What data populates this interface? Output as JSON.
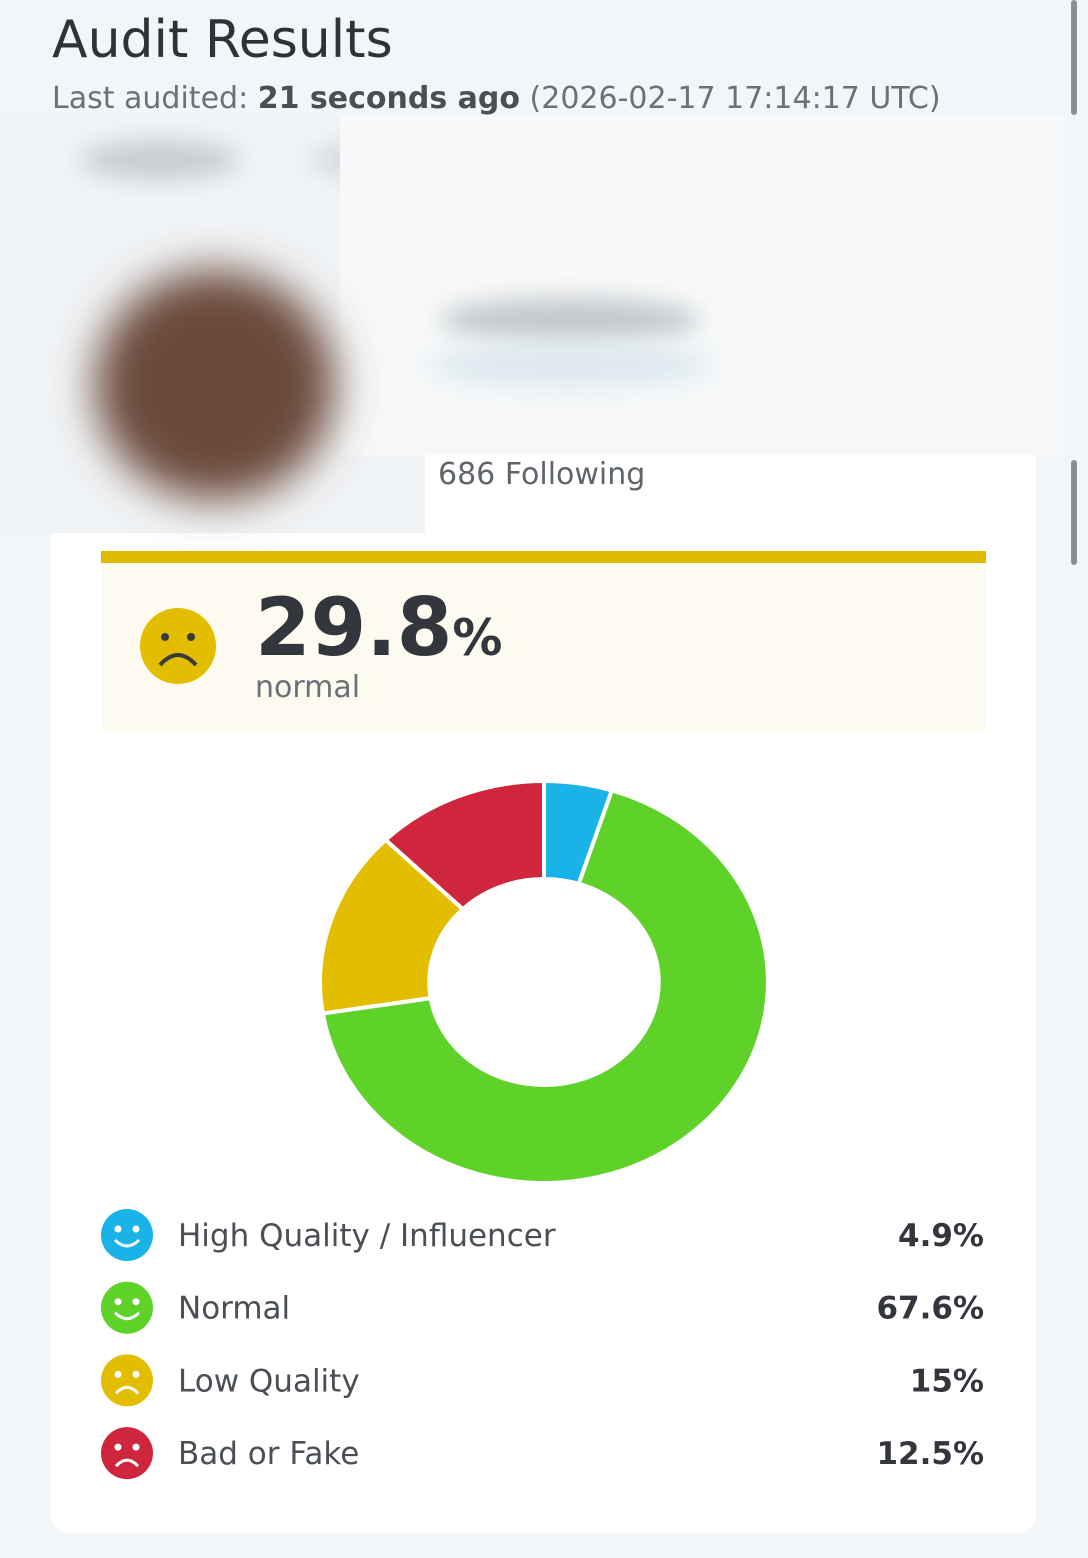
{
  "header": {
    "title": "Audit Results",
    "last_audited_label": "Last audited:",
    "last_audited_relative": "21 seconds ago",
    "last_audited_timestamp": "(2026-02-17 17:14:17 UTC)"
  },
  "profile": {
    "following_count": 686,
    "following_label": "Following"
  },
  "score": {
    "value": 29.8,
    "unit": "%",
    "label": "normal"
  },
  "chart_data": {
    "type": "pie",
    "categories": [
      "High Quality / Influencer",
      "Normal",
      "Low Quality",
      "Bad or Fake"
    ],
    "values": [
      4.9,
      67.6,
      15,
      12.5
    ],
    "value_labels": [
      "4.9%",
      "67.6%",
      "15%",
      "12.5%"
    ],
    "colors": [
      "#1ab3e8",
      "#5fd22a",
      "#e3be00",
      "#d0263d"
    ]
  }
}
